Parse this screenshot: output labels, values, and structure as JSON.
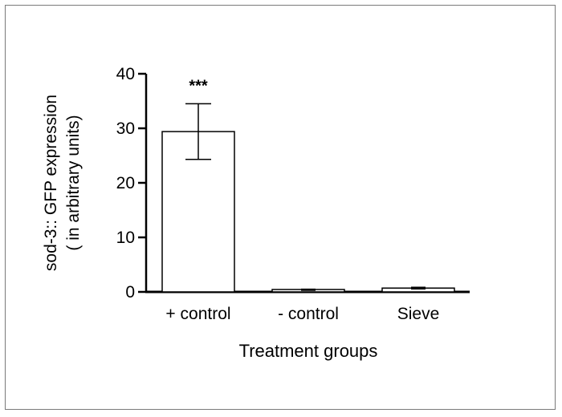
{
  "chart_data": {
    "type": "bar",
    "xlabel": "Treatment groups",
    "ylabel_line1": "sod-3:: GFP expression",
    "ylabel_line2": "( in arbitrary units)",
    "ylim": [
      0,
      40
    ],
    "yticks": [
      "0",
      "10",
      "20",
      "30",
      "40"
    ],
    "categories": [
      "+ control",
      "- control",
      "Sieve"
    ],
    "values": [
      29.4,
      0.4,
      0.7
    ],
    "errors": [
      5.1,
      0.1,
      0.15
    ],
    "annotations": [
      "***",
      "",
      ""
    ],
    "grid": false,
    "legend": "none"
  }
}
